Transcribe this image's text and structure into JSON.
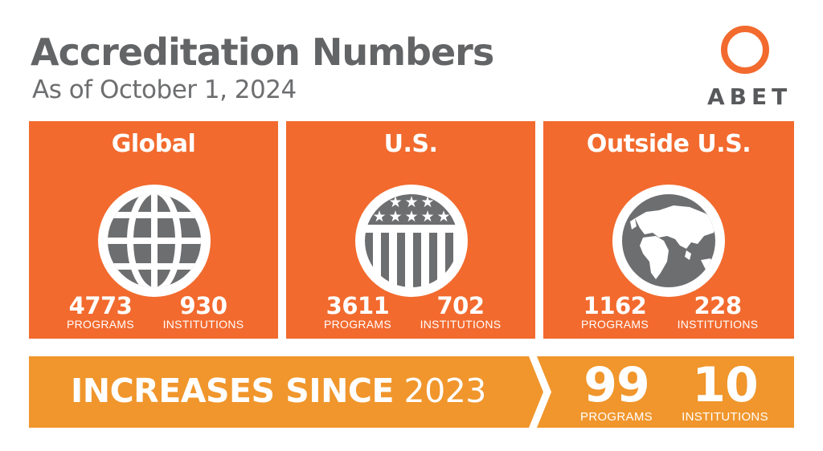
{
  "header": {
    "title": "Accreditation Numbers",
    "subtitle": "As of October 1, 2024"
  },
  "logo": {
    "text": "ABET",
    "accent_color": "#f26a2e"
  },
  "colors": {
    "panel": "#f26a2e",
    "banner": "#f0962c",
    "text_gray": "#636466",
    "icon_gray": "#6d6e70"
  },
  "panels": [
    {
      "title": "Global",
      "icon": "globe-grid-icon",
      "programs": "4773",
      "programs_label": "PROGRAMS",
      "institutions": "930",
      "institutions_label": "INSTITUTIONS"
    },
    {
      "title": "U.S.",
      "icon": "us-flag-shield-icon",
      "programs": "3611",
      "programs_label": "PROGRAMS",
      "institutions": "702",
      "institutions_label": "INSTITUTIONS"
    },
    {
      "title": "Outside U.S.",
      "icon": "earth-continents-icon",
      "programs": "1162",
      "programs_label": "PROGRAMS",
      "institutions": "228",
      "institutions_label": "INSTITUTIONS"
    }
  ],
  "banner": {
    "text_bold": "INCREASES SINCE",
    "text_light": "2023",
    "programs": "99",
    "programs_label": "PROGRAMS",
    "institutions": "10",
    "institutions_label": "INSTITUTIONS"
  }
}
